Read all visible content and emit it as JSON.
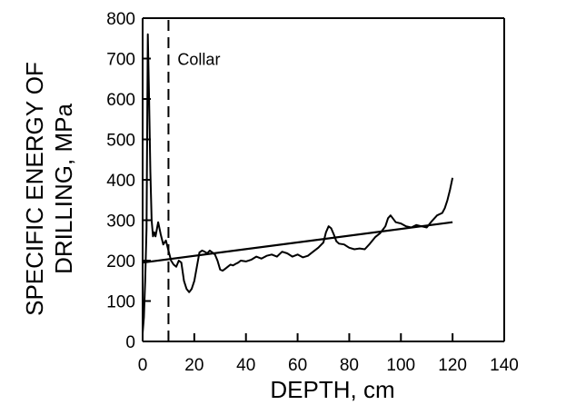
{
  "chart_data": {
    "type": "line",
    "xlabel": "DEPTH, cm",
    "ylabel_lines": [
      "SPECIFIC ENERGY OF",
      "DRILLING, MPa"
    ],
    "xlim": [
      0,
      140
    ],
    "ylim": [
      0,
      800
    ],
    "xticks": [
      0,
      20,
      40,
      60,
      80,
      100,
      120,
      140
    ],
    "yticks": [
      0,
      100,
      200,
      300,
      400,
      500,
      600,
      700,
      800
    ],
    "grid": false,
    "annotations": [
      {
        "text": "Collar",
        "x": 10,
        "kind": "vertical-dashed-line"
      }
    ],
    "series": [
      {
        "kind": "measured",
        "x": [
          0,
          0.5,
          1,
          1.5,
          2,
          2.5,
          3,
          3.5,
          4,
          4.5,
          5,
          6,
          7,
          8,
          9,
          10,
          11,
          12,
          13,
          14,
          15,
          16,
          17,
          18,
          19,
          20,
          21,
          22,
          23,
          24,
          25,
          26,
          27,
          28,
          29,
          30,
          31,
          32,
          33,
          34,
          35,
          36,
          37,
          38,
          40,
          42,
          44,
          46,
          48,
          50,
          52,
          54,
          56,
          58,
          60,
          62,
          64,
          66,
          68,
          70,
          71,
          72,
          73,
          74,
          75,
          76,
          78,
          80,
          82,
          84,
          86,
          88,
          90,
          92,
          94,
          95,
          96,
          98,
          100,
          102,
          104,
          106,
          108,
          110,
          112,
          114,
          116,
          117,
          118,
          119,
          120
        ],
        "y": [
          20,
          60,
          150,
          280,
          760,
          600,
          420,
          300,
          260,
          270,
          260,
          295,
          265,
          240,
          250,
          225,
          200,
          190,
          185,
          200,
          195,
          150,
          130,
          122,
          130,
          150,
          185,
          220,
          225,
          222,
          218,
          225,
          220,
          215,
          200,
          178,
          175,
          180,
          185,
          190,
          188,
          192,
          195,
          200,
          198,
          202,
          210,
          205,
          212,
          215,
          210,
          222,
          218,
          210,
          215,
          208,
          212,
          222,
          232,
          245,
          270,
          285,
          280,
          265,
          248,
          242,
          240,
          232,
          228,
          230,
          228,
          242,
          258,
          268,
          285,
          305,
          312,
          295,
          292,
          285,
          282,
          288,
          285,
          282,
          298,
          312,
          318,
          330,
          350,
          375,
          405
        ]
      },
      {
        "kind": "trend",
        "x": [
          0,
          120
        ],
        "y": [
          195,
          295
        ]
      }
    ]
  }
}
